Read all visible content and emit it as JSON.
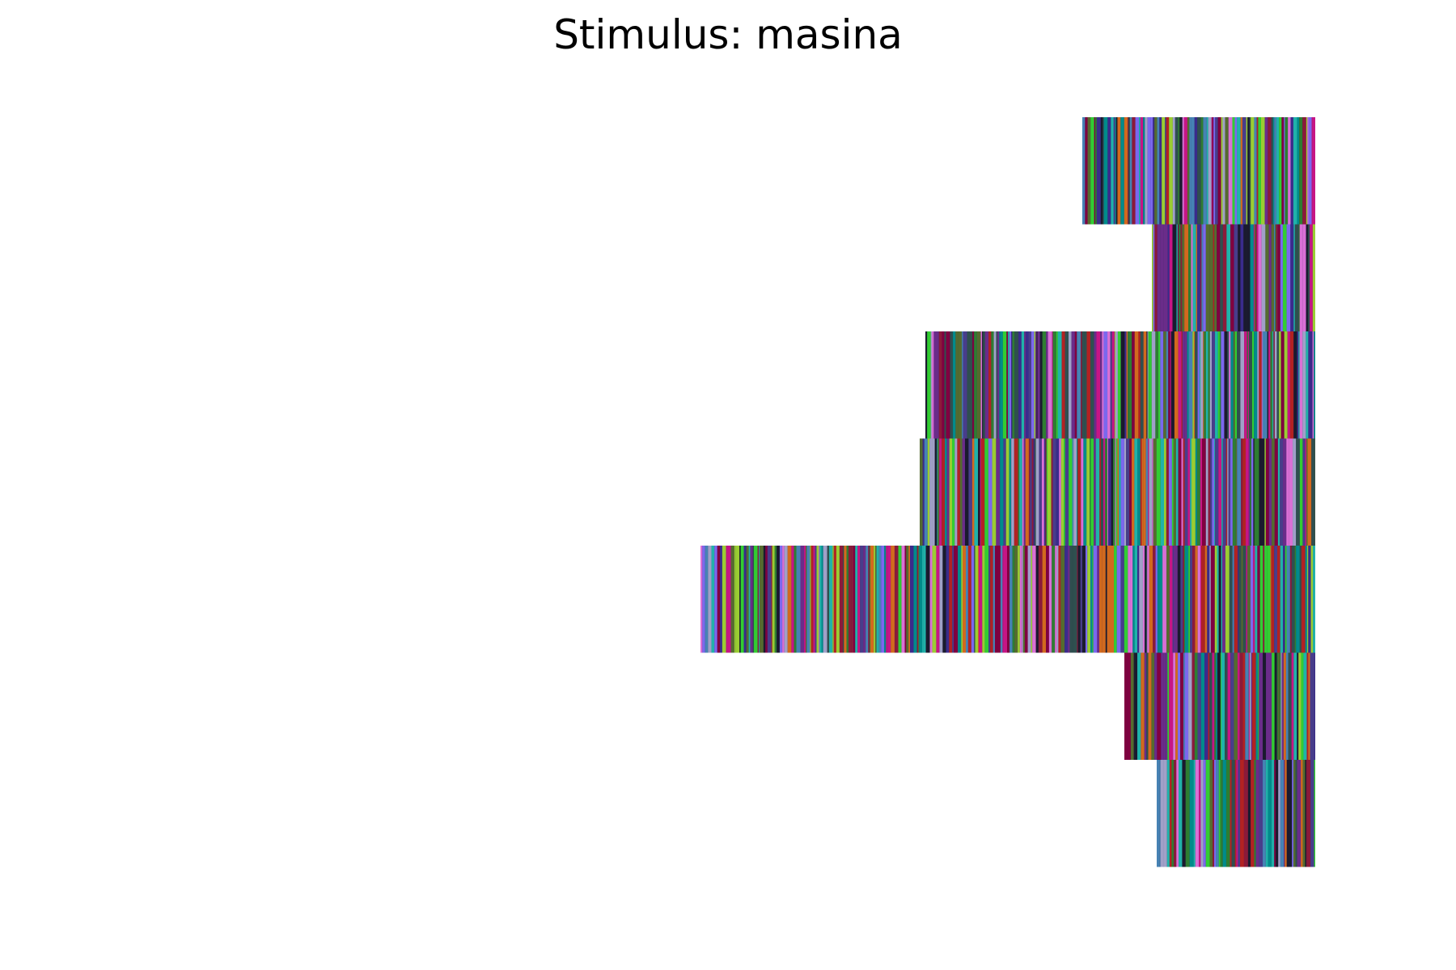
{
  "chart_data": {
    "type": "bar",
    "title": "Stimulus: masina",
    "xlabel": "",
    "ylabel": "",
    "xlim": [
      0,
      760
    ],
    "grid": false,
    "axes_visible": false,
    "orientation": "horizontal",
    "alignment": "right",
    "bar_style": "striped-multicolor",
    "stripe_colors": [
      "#1a1a2e",
      "#3a2b8c",
      "#6a2c8a",
      "#2e7d32",
      "#9acd32",
      "#4682b4",
      "#8b1a3a",
      "#a0a0c8",
      "#c71585",
      "#20b2aa",
      "#556b2f",
      "#7b68ee",
      "#b22222",
      "#2f4f4f",
      "#d2691e",
      "#da70d6",
      "#008b8b",
      "#483d8b",
      "#32cd32",
      "#800040"
    ],
    "series": [
      {
        "values": [
          288,
          202,
          482,
          489,
          760,
          236,
          196
        ]
      }
    ]
  }
}
